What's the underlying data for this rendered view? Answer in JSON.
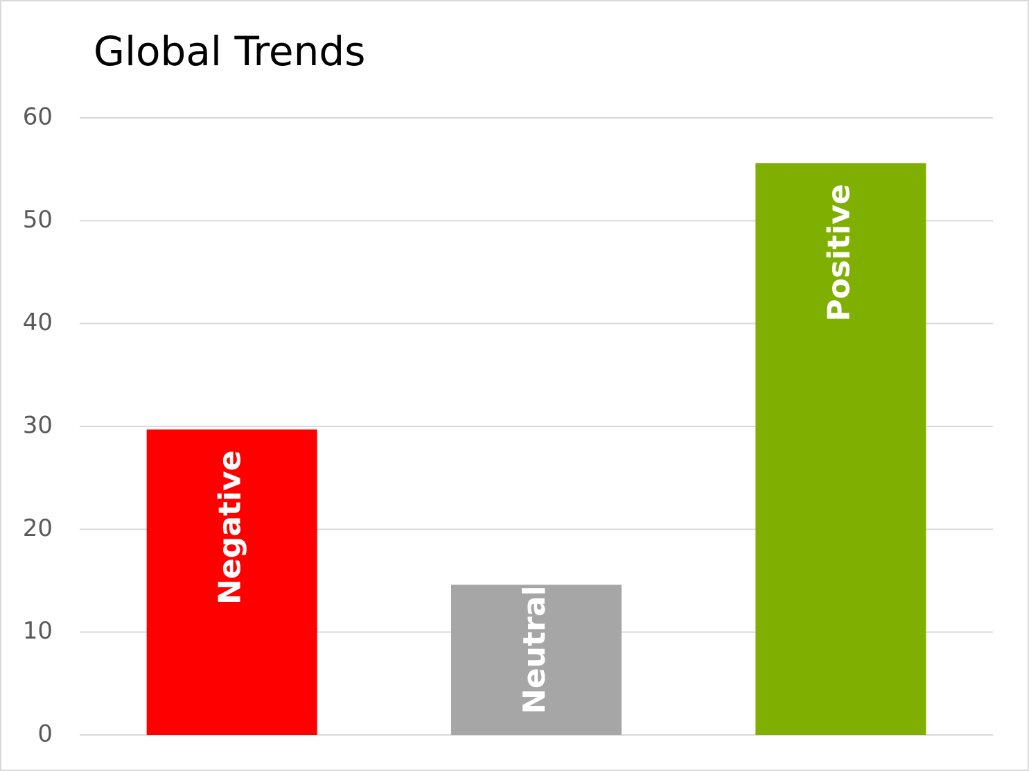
{
  "chart_data": {
    "type": "bar",
    "title": "Global Trends",
    "categories": [
      "Negative",
      "Neutral",
      "Positive"
    ],
    "values": [
      29.7,
      14.6,
      55.6
    ],
    "colors": [
      "#ff0000",
      "#a6a6a6",
      "#7faf00"
    ],
    "ylim": [
      0,
      60
    ],
    "yticks": [
      0,
      10,
      20,
      30,
      40,
      50,
      60
    ],
    "grid": true
  }
}
